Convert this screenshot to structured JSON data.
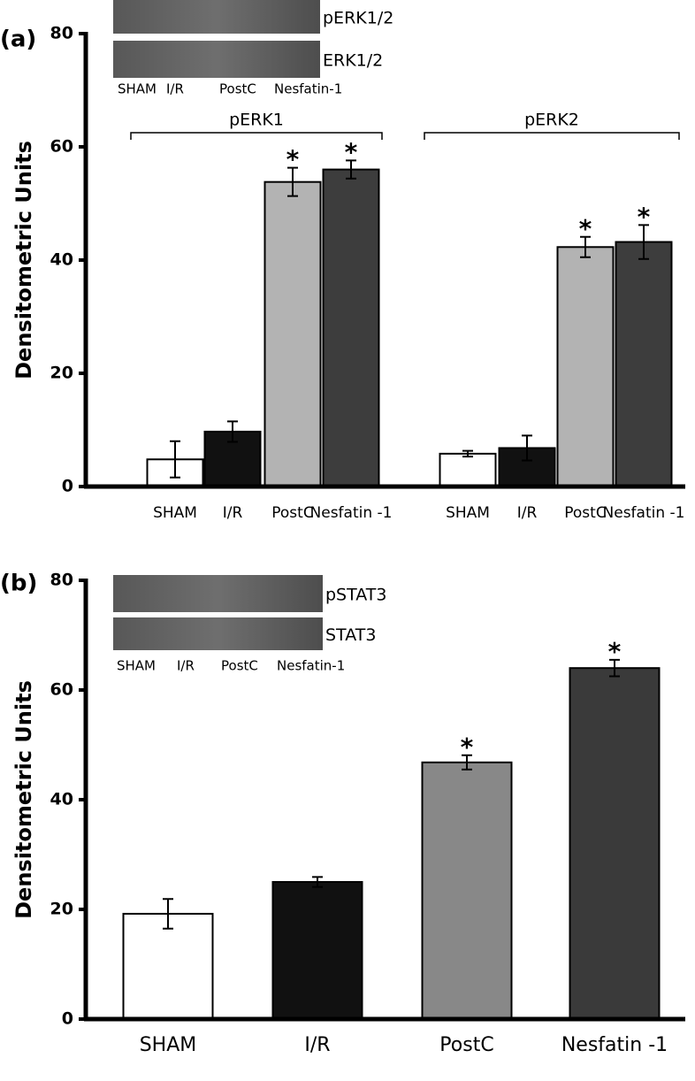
{
  "chart_data": [
    {
      "type": "bar",
      "panel_label": "(a)",
      "ylabel": "Densitometric Units",
      "blot": {
        "rows": [
          "pERK1/2",
          "ERK1/2"
        ],
        "lanes": [
          "SHAM",
          "I/R",
          "PostC",
          "Nesfatin-1"
        ]
      },
      "categories": [
        "SHAM",
        "I/R",
        "PostC",
        "Nesfatin -1"
      ],
      "colors": [
        "#ffffff",
        "#111111",
        "#b3b3b3",
        "#3d3d3d"
      ],
      "series": [
        {
          "name": "pERK1",
          "values": [
            4.8,
            9.7,
            53.8,
            56
          ],
          "errors": [
            3.2,
            1.8,
            2.5,
            1.6
          ],
          "significance": [
            null,
            null,
            "*",
            "*"
          ]
        },
        {
          "name": "pERK2",
          "values": [
            5.8,
            6.8,
            42.3,
            43.2
          ],
          "errors": [
            0.5,
            2.2,
            1.8,
            3.0
          ],
          "significance": [
            null,
            null,
            "*",
            "*"
          ]
        }
      ],
      "ylim": [
        0,
        80
      ],
      "yticks": [
        0,
        20,
        40,
        60,
        80
      ]
    },
    {
      "type": "bar",
      "panel_label": "(b)",
      "ylabel": "Densitometric Units",
      "blot": {
        "rows": [
          "pSTAT3",
          "STAT3"
        ],
        "lanes": [
          "SHAM",
          "I/R",
          "PostC",
          "Nesfatin-1"
        ]
      },
      "categories": [
        "SHAM",
        "I/R",
        "PostC",
        "Nesfatin -1"
      ],
      "colors": [
        "#ffffff",
        "#111111",
        "#888888",
        "#3a3a3a"
      ],
      "series": [
        {
          "values": [
            19.2,
            25,
            46.8,
            64
          ],
          "errors": [
            2.7,
            0.9,
            1.3,
            1.5
          ],
          "significance": [
            null,
            null,
            "*",
            "*"
          ]
        }
      ],
      "ylim": [
        0,
        80
      ],
      "yticks": [
        0,
        20,
        40,
        60,
        80
      ]
    }
  ]
}
